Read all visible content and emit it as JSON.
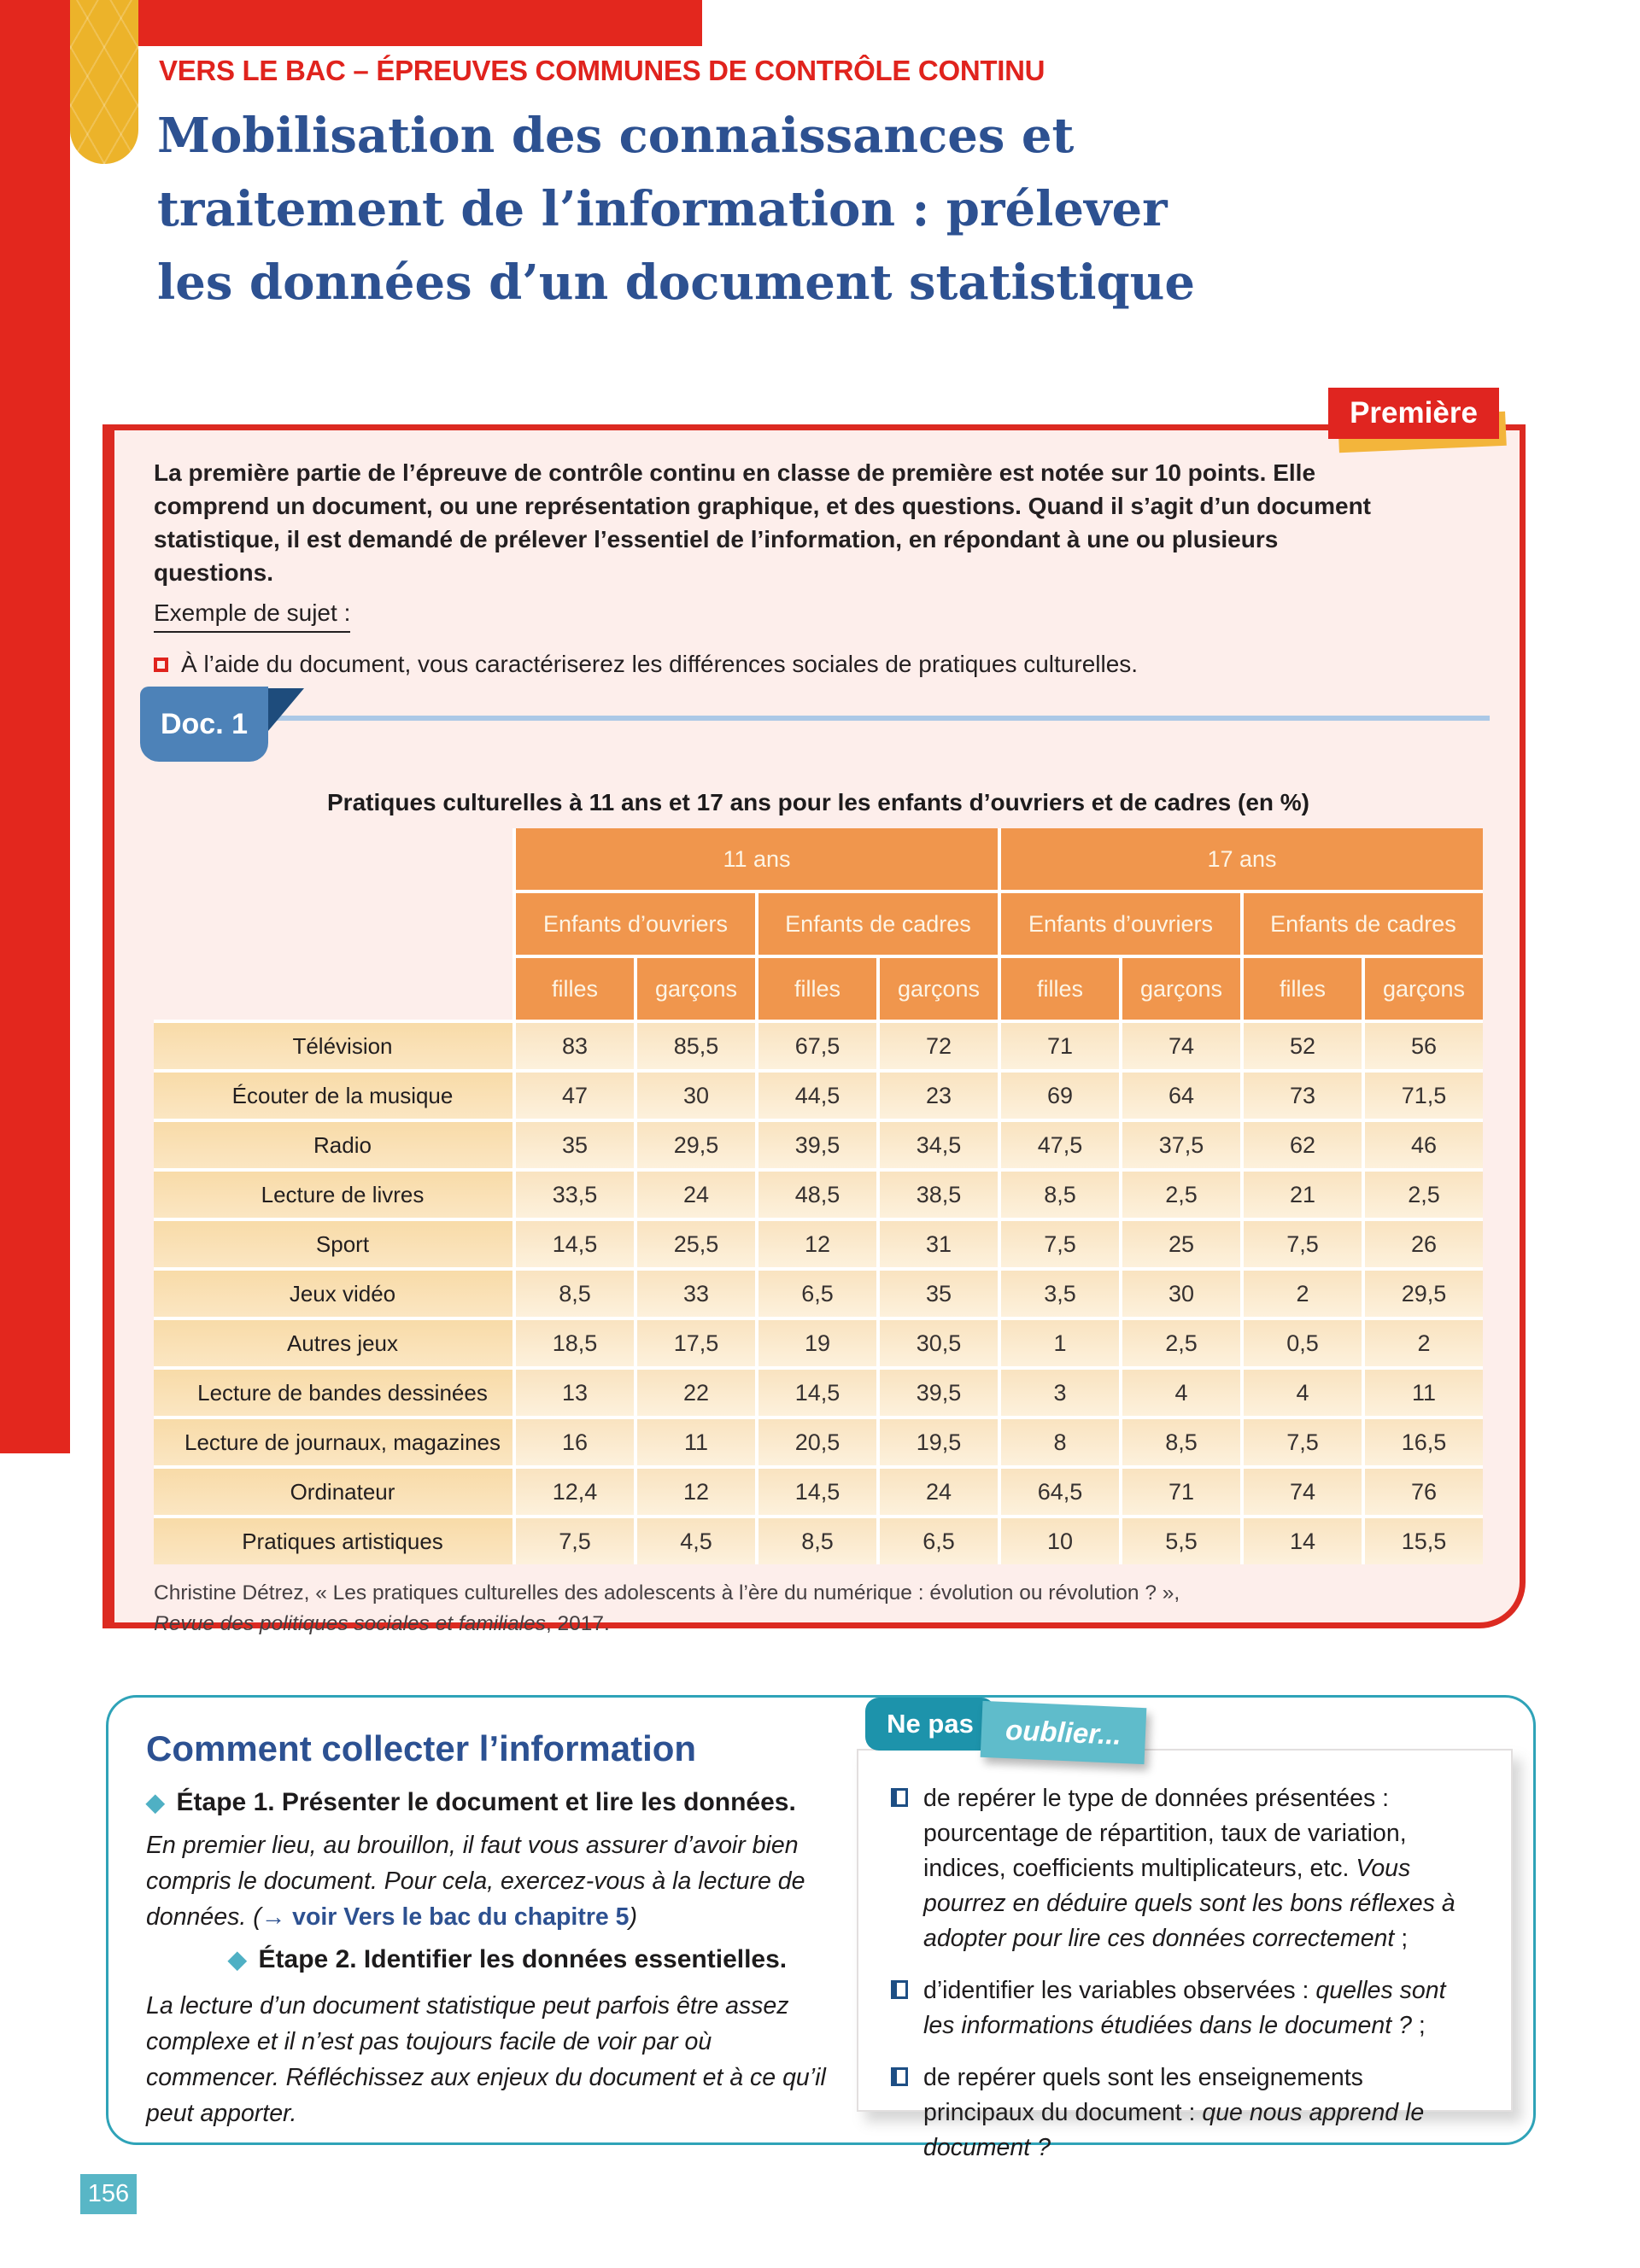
{
  "page": {
    "kicker": "VERS LE BAC – ÉPREUVES COMMUNES DE CONTRÔLE CONTINU",
    "title_lines": [
      "Mobilisation des connaissances et",
      "traitement de l’information : prélever",
      "les données d’un document statistique"
    ],
    "level_badge": "Première",
    "number": "156"
  },
  "intro": {
    "paragraph": "La première partie de l’épreuve de contrôle continu en classe de première est notée sur 10 points. Elle comprend un document, ou une représentation graphique, et des questions. Quand il s’agit d’un document statistique, il est demandé de prélever l’essentiel de l’information, en répondant à une ou plusieurs questions.",
    "example_label": "Exemple de sujet :",
    "example_item": "À l’aide du document, vous caractériserez les différences sociales de pratiques culturelles."
  },
  "doc": {
    "tab_label": "Doc. 1",
    "table_title": "Pratiques culturelles à 11 ans et 17 ans pour les enfants d’ouvriers et de cadres (en %)",
    "source_line1": "Christine Détrez, « Les pratiques culturelles des adolescents à l’ère du numérique : évolution ou révolution ? »,",
    "source_journal": "Revue des politiques sociales et familiales",
    "source_year": ", 2017."
  },
  "table": {
    "age_groups": [
      "11 ans",
      "17 ans"
    ],
    "category_groups": [
      "Enfants d’ouvriers",
      "Enfants de cadres",
      "Enfants d’ouvriers",
      "Enfants de cadres"
    ],
    "sex_headers": [
      "filles",
      "garçons",
      "filles",
      "garçons",
      "filles",
      "garçons",
      "filles",
      "garçons"
    ],
    "rows": [
      {
        "label": "Télévision",
        "values": [
          "83",
          "85,5",
          "67,5",
          "72",
          "71",
          "74",
          "52",
          "56"
        ]
      },
      {
        "label": "Écouter de la musique",
        "values": [
          "47",
          "30",
          "44,5",
          "23",
          "69",
          "64",
          "73",
          "71,5"
        ]
      },
      {
        "label": "Radio",
        "values": [
          "35",
          "29,5",
          "39,5",
          "34,5",
          "47,5",
          "37,5",
          "62",
          "46"
        ]
      },
      {
        "label": "Lecture de livres",
        "values": [
          "33,5",
          "24",
          "48,5",
          "38,5",
          "8,5",
          "2,5",
          "21",
          "2,5"
        ]
      },
      {
        "label": "Sport",
        "values": [
          "14,5",
          "25,5",
          "12",
          "31",
          "7,5",
          "25",
          "7,5",
          "26"
        ]
      },
      {
        "label": "Jeux vidéo",
        "values": [
          "8,5",
          "33",
          "6,5",
          "35",
          "3,5",
          "30",
          "2",
          "29,5"
        ]
      },
      {
        "label": "Autres jeux",
        "values": [
          "18,5",
          "17,5",
          "19",
          "30,5",
          "1",
          "2,5",
          "0,5",
          "2"
        ]
      },
      {
        "label": "Lecture de bandes dessinées",
        "values": [
          "13",
          "22",
          "14,5",
          "39,5",
          "3",
          "4",
          "4",
          "11"
        ]
      },
      {
        "label": "Lecture de journaux, magazines",
        "values": [
          "16",
          "11",
          "20,5",
          "19,5",
          "8",
          "8,5",
          "7,5",
          "16,5"
        ]
      },
      {
        "label": "Ordinateur",
        "values": [
          "12,4",
          "12",
          "14,5",
          "24",
          "64,5",
          "71",
          "74",
          "76"
        ]
      },
      {
        "label": "Pratiques artistiques",
        "values": [
          "7,5",
          "4,5",
          "8,5",
          "6,5",
          "10",
          "5,5",
          "14",
          "15,5"
        ]
      }
    ]
  },
  "method": {
    "title": "Comment collecter l’information",
    "steps": [
      {
        "heading": "Étape 1. Présenter le document et lire les données.",
        "body_before_link": "En premier lieu, au brouillon, il faut vous assurer d’avoir bien compris le document. Pour cela, exercez-vous à la lecture de données. (",
        "link": "→ voir Vers le bac du chapitre 5",
        "body_after_link": ")"
      },
      {
        "heading": "Étape 2. Identifier les données essentielles.",
        "body": "La lecture d’un document statistique peut parfois être assez complexe et il n’est pas toujours facile de voir par où commencer. Réfléchissez aux enjeux du document et à ce qu’il peut apporter."
      }
    ]
  },
  "reminder": {
    "badge_part1": "Ne pas",
    "badge_part2": "oublier...",
    "items": [
      {
        "normal": "de repérer le type de données présentées : pourcentage de répartition, taux de variation, indices, coefficients multiplicateurs, etc. ",
        "italic": "Vous pourrez en déduire quels sont les bons réflexes à adopter pour lire ces données correctement",
        "tail": " ;"
      },
      {
        "normal": "d’identifier les variables observées : ",
        "italic": "quelles sont les informations étudiées dans le document ?",
        "tail": " ;"
      },
      {
        "normal": "de repérer quels sont les enseignements principaux du document : ",
        "italic": "que nous apprend le document ?",
        "tail": ""
      }
    ]
  },
  "colors": {
    "accent_red": "#e3271e",
    "title_blue": "#2d5191",
    "table_orange": "#f0964d",
    "teal": "#2fa3b8",
    "yellow": "#ecb32a"
  }
}
